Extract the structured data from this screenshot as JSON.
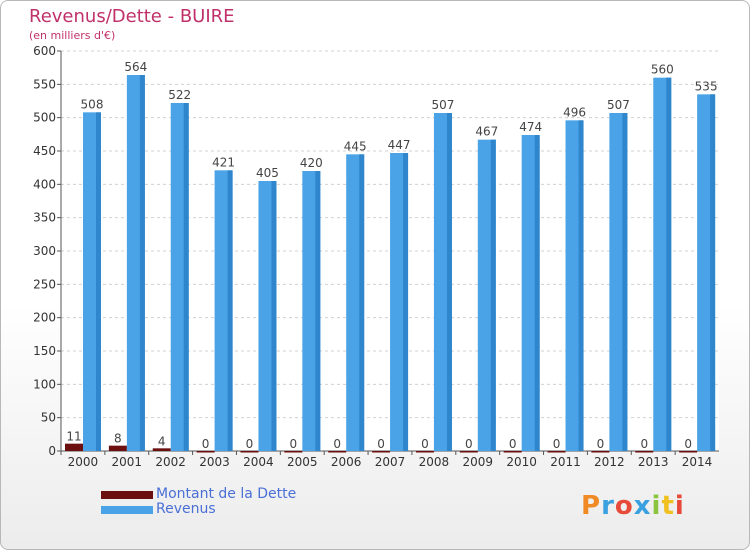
{
  "chart_data": {
    "type": "bar",
    "title": "Revenus/Dette - BUIRE",
    "subtitle": "(en milliers d'€)",
    "categories": [
      "2000",
      "2001",
      "2002",
      "2003",
      "2004",
      "2005",
      "2006",
      "2007",
      "2008",
      "2009",
      "2010",
      "2011",
      "2012",
      "2013",
      "2014"
    ],
    "series": [
      {
        "name": "Montant de la Dette",
        "color": "#6b0f0f",
        "values": [
          11,
          8,
          4,
          0,
          0,
          0,
          0,
          0,
          0,
          0,
          0,
          0,
          0,
          0,
          0
        ]
      },
      {
        "name": "Revenus",
        "color": "#4aa3e6",
        "values": [
          508,
          564,
          522,
          421,
          405,
          420,
          445,
          447,
          507,
          467,
          474,
          496,
          507,
          560,
          535
        ]
      }
    ],
    "yticks": [
      0,
      50,
      100,
      150,
      200,
      250,
      300,
      350,
      400,
      450,
      500,
      550,
      600
    ],
    "ylim": [
      0,
      600
    ],
    "grid": true,
    "legend_position": "bottom-left"
  },
  "logo": {
    "letters": [
      "P",
      "r",
      "o",
      "x",
      "i",
      "t",
      "i"
    ],
    "colors": [
      "#f08a24",
      "#3aa0e0",
      "#e84a3a",
      "#3aa0e0",
      "#8bc43f",
      "#f0c020",
      "#e84a3a"
    ]
  }
}
